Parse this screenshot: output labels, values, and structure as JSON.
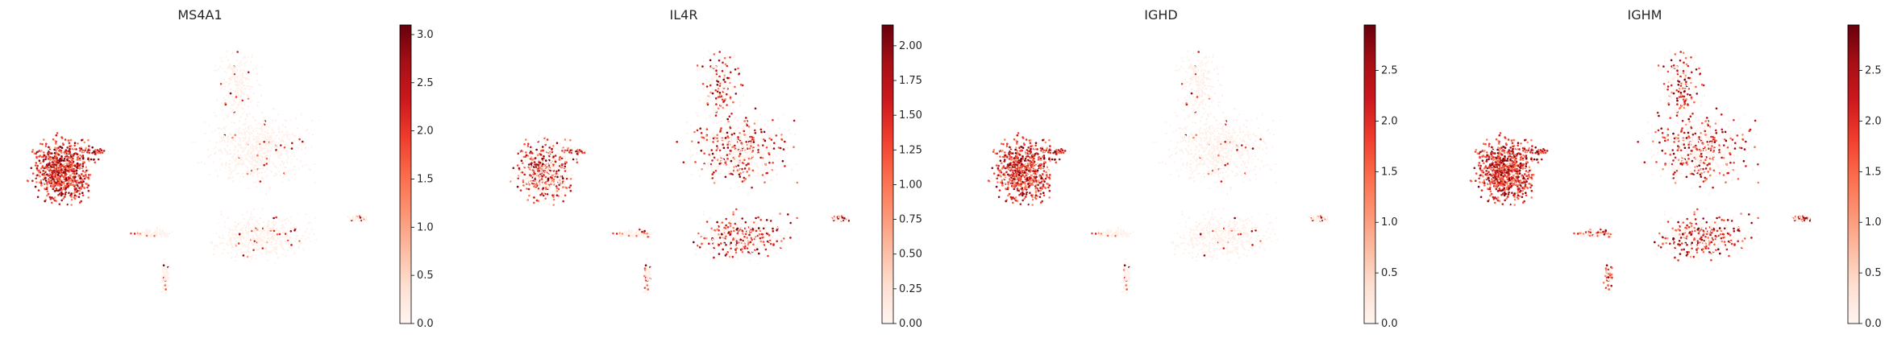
{
  "chart_data": [
    {
      "type": "scatter",
      "title": "MS4A1",
      "colormap": "Reds",
      "colorbar": {
        "min": 0,
        "max": 3.1,
        "ticks": [
          "0.0",
          "0.5",
          "1.0",
          "1.5",
          "2.0",
          "2.5",
          "3.0"
        ]
      }
    },
    {
      "type": "scatter",
      "title": "IL4R",
      "colormap": "Reds",
      "colorbar": {
        "min": 0,
        "max": 2.15,
        "ticks": [
          "0.00",
          "0.25",
          "0.50",
          "0.75",
          "1.00",
          "1.25",
          "1.50",
          "1.75",
          "2.00"
        ]
      }
    },
    {
      "type": "scatter",
      "title": "IGHD",
      "colormap": "Reds",
      "colorbar": {
        "min": 0,
        "max": 2.95,
        "ticks": [
          "0.0",
          "0.5",
          "1.0",
          "1.5",
          "2.0",
          "2.5"
        ]
      }
    },
    {
      "type": "scatter",
      "title": "IGHM",
      "colormap": "Reds",
      "colorbar": {
        "min": 0,
        "max": 2.95,
        "ticks": [
          "0.0",
          "0.5",
          "1.0",
          "1.5",
          "2.0",
          "2.5"
        ]
      }
    }
  ]
}
